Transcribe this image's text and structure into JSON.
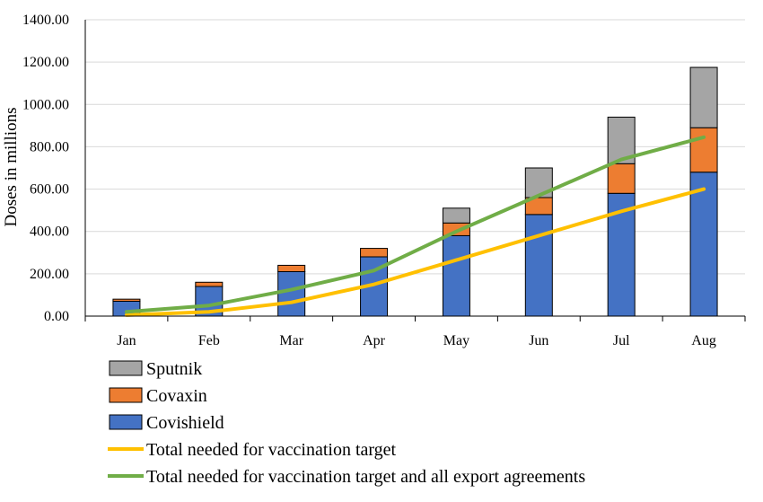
{
  "chart_data": {
    "type": "bar",
    "stacked": true,
    "title": "",
    "xlabel": "",
    "ylabel": "Doses in millions",
    "ylim": [
      0,
      1400
    ],
    "ytick_step": 200,
    "grid": true,
    "legend_position": "bottom-left",
    "categories": [
      "Jan",
      "Feb",
      "Mar",
      "Apr",
      "May",
      "Jun",
      "Jul",
      "Aug"
    ],
    "series": [
      {
        "name": "Covishield",
        "kind": "bar",
        "color": "#4472C4",
        "values": [
          70,
          140,
          210,
          280,
          380,
          480,
          580,
          680
        ]
      },
      {
        "name": "Covaxin",
        "kind": "bar",
        "color": "#ED7D31",
        "values": [
          10,
          20,
          30,
          40,
          60,
          80,
          140,
          210
        ]
      },
      {
        "name": "Sputnik",
        "kind": "bar",
        "color": "#A5A5A5",
        "values": [
          0,
          0,
          0,
          0,
          70,
          140,
          220,
          285
        ]
      },
      {
        "name": "Total needed for vaccination target",
        "kind": "line",
        "color": "#FFC000",
        "values": [
          5,
          20,
          65,
          150,
          265,
          380,
          495,
          600
        ]
      },
      {
        "name": "Total needed for vaccination target and all export agreements",
        "kind": "line",
        "color": "#70AD47",
        "values": [
          20,
          50,
          125,
          215,
          400,
          570,
          740,
          845
        ]
      }
    ],
    "legend_order": [
      "Sputnik",
      "Covaxin",
      "Covishield",
      "Total needed for vaccination target",
      "Total needed for vaccination target and all export agreements"
    ]
  }
}
